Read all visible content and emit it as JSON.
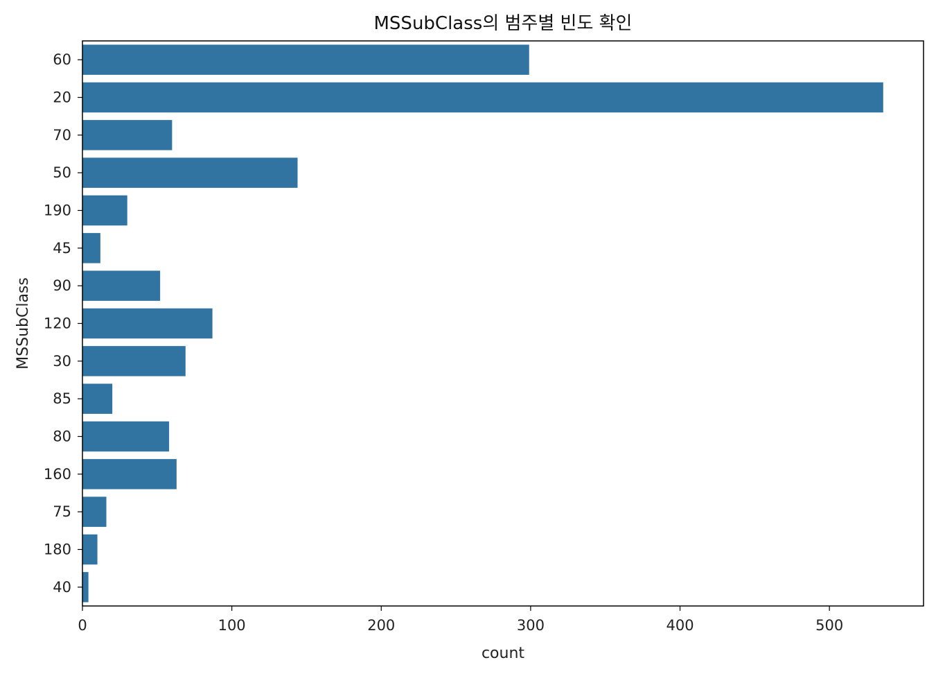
{
  "chart_data": {
    "type": "bar",
    "orientation": "horizontal",
    "title": "MSSubClass의 범주별 빈도 확인",
    "xlabel": "count",
    "ylabel": "MSSubClass",
    "categories": [
      "60",
      "20",
      "70",
      "50",
      "190",
      "45",
      "90",
      "120",
      "30",
      "85",
      "80",
      "160",
      "75",
      "180",
      "40"
    ],
    "values": [
      299,
      536,
      60,
      144,
      30,
      12,
      52,
      87,
      69,
      20,
      58,
      63,
      16,
      10,
      4
    ],
    "xlim": [
      0,
      563
    ],
    "xticks": [
      0,
      100,
      200,
      300,
      400,
      500
    ],
    "grid": false,
    "bar_color": "#3274a1"
  }
}
